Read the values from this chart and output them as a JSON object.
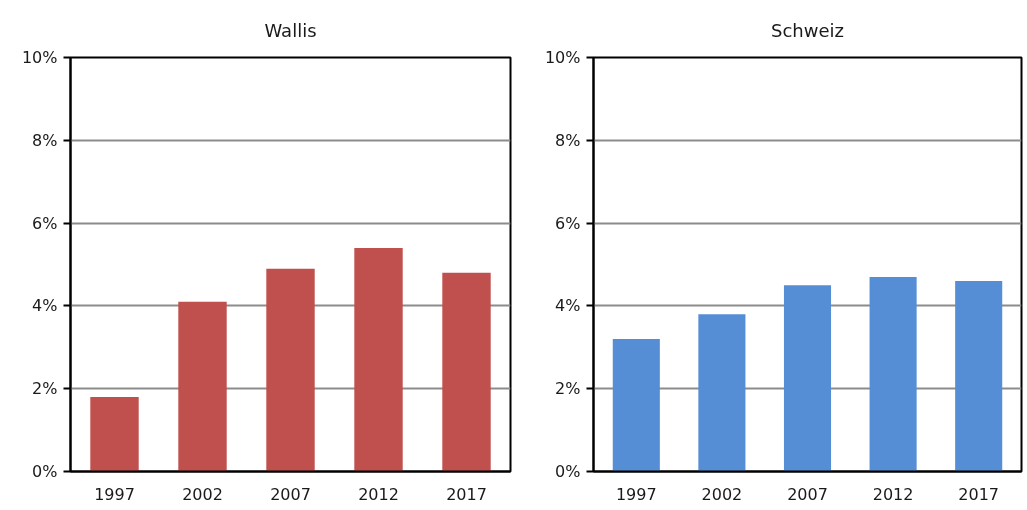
{
  "chart_data": [
    {
      "type": "bar",
      "title": "Wallis",
      "categories": [
        "1997",
        "2002",
        "2007",
        "2012",
        "2017"
      ],
      "values": [
        1.8,
        4.1,
        4.9,
        5.4,
        4.8
      ],
      "color": "#c0504d",
      "ylim": [
        0,
        10
      ],
      "yticks": [
        {
          "value": 0,
          "label": "0%"
        },
        {
          "value": 2,
          "label": "2%"
        },
        {
          "value": 4,
          "label": "4%"
        },
        {
          "value": 6,
          "label": "6%"
        },
        {
          "value": 8,
          "label": "8%"
        },
        {
          "value": 10,
          "label": "10%"
        }
      ],
      "grid": "y"
    },
    {
      "type": "bar",
      "title": "Schweiz",
      "categories": [
        "1997",
        "2002",
        "2007",
        "2012",
        "2017"
      ],
      "values": [
        3.2,
        3.8,
        4.5,
        4.7,
        4.6
      ],
      "color": "#558ed5",
      "ylim": [
        0,
        10
      ],
      "yticks": [
        {
          "value": 0,
          "label": "0%"
        },
        {
          "value": 2,
          "label": "2%"
        },
        {
          "value": 4,
          "label": "4%"
        },
        {
          "value": 6,
          "label": "6%"
        },
        {
          "value": 8,
          "label": "8%"
        },
        {
          "value": 10,
          "label": "10%"
        }
      ],
      "grid": "y"
    }
  ]
}
